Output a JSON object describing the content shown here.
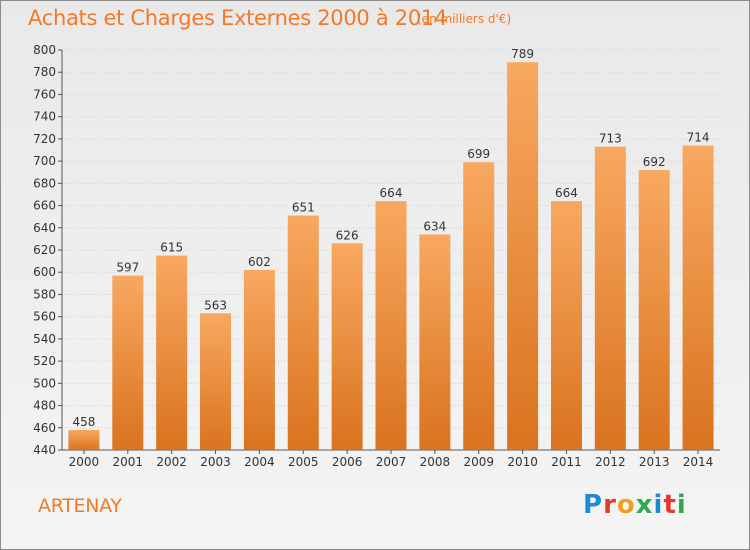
{
  "header": {
    "title": "Achats et Charges Externes 2000 à 2014",
    "subtitle": "(en milliers d'€)"
  },
  "footer": {
    "place": "ARTENAY",
    "logo_text": "Proxiti",
    "logo_colors": [
      "#1e8ad6",
      "#e23b2e",
      "#f0a020",
      "#2fa84f",
      "#1e8ad6",
      "#e23b2e",
      "#2fa84f"
    ]
  },
  "colors": {
    "accent": "#f07a28",
    "bar_top": "#f8a860",
    "bar_bottom": "#d9731f",
    "grid": "#d2d2d2",
    "axis": "#555555"
  },
  "chart_data": {
    "type": "bar",
    "categories": [
      "2000",
      "2001",
      "2002",
      "2003",
      "2004",
      "2005",
      "2006",
      "2007",
      "2008",
      "2009",
      "2010",
      "2011",
      "2012",
      "2013",
      "2014"
    ],
    "values": [
      458,
      597,
      615,
      563,
      602,
      651,
      626,
      664,
      634,
      699,
      789,
      664,
      713,
      692,
      714
    ],
    "ylim": [
      440,
      800
    ],
    "ytick_step": 20,
    "yticks": [
      440,
      460,
      480,
      500,
      520,
      540,
      560,
      580,
      600,
      620,
      640,
      660,
      680,
      700,
      720,
      740,
      760,
      780,
      800
    ],
    "grid": true,
    "legend": "none"
  }
}
